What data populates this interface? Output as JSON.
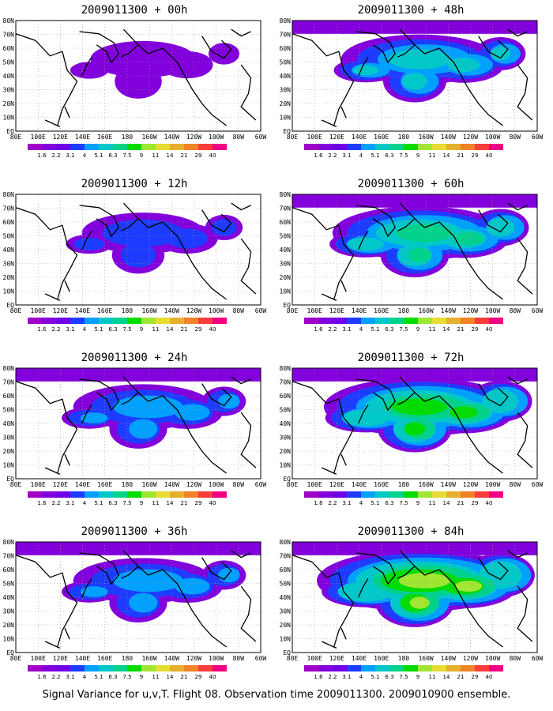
{
  "footer": "Signal Variance for u,v,T. Flight 08. Observation time 2009011300. 2009010900 ensemble.",
  "axes": {
    "lon_labels": [
      "80E",
      "100E",
      "120E",
      "140E",
      "160E",
      "180",
      "160W",
      "140W",
      "120W",
      "100W",
      "80W",
      "60W"
    ],
    "lat_labels": [
      "EQ",
      "10N",
      "20N",
      "30N",
      "40N",
      "50N",
      "60N",
      "70N",
      "80N"
    ]
  },
  "colorbar": {
    "levels": [
      "1.6",
      "2.2",
      "3.1",
      "4",
      "5.1",
      "6.3",
      "7.5",
      "9",
      "11",
      "14",
      "21",
      "29",
      "40"
    ],
    "colors": [
      "#a000c8",
      "#8200dc",
      "#6e00e6",
      "#1e3cff",
      "#00a0ff",
      "#00c8c8",
      "#00d28c",
      "#00dc00",
      "#a0e632",
      "#e6dc32",
      "#e6af2d",
      "#f08228",
      "#fa3c3c",
      "#f00082"
    ]
  },
  "panels": [
    {
      "title": "2009011300 + 00h",
      "col": 0,
      "row": 0,
      "fill_level": 1
    },
    {
      "title": "2009011300 + 12h",
      "col": 0,
      "row": 1,
      "fill_level": 2
    },
    {
      "title": "2009011300 + 24h",
      "col": 0,
      "row": 2,
      "fill_level": 3
    },
    {
      "title": "2009011300 + 36h",
      "col": 0,
      "row": 3,
      "fill_level": 3
    },
    {
      "title": "2009011300 + 48h",
      "col": 1,
      "row": 0,
      "fill_level": 4
    },
    {
      "title": "2009011300 + 60h",
      "col": 1,
      "row": 1,
      "fill_level": 5
    },
    {
      "title": "2009011300 + 72h",
      "col": 1,
      "row": 2,
      "fill_level": 6
    },
    {
      "title": "2009011300 + 84h",
      "col": 1,
      "row": 3,
      "fill_level": 7
    }
  ]
}
